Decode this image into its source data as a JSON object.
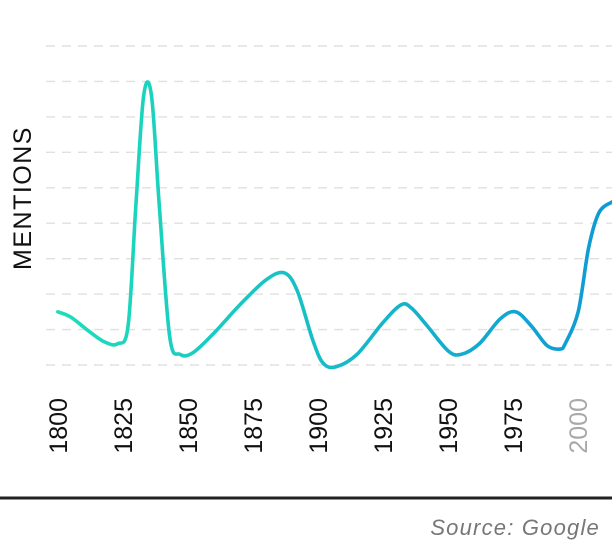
{
  "chart_data": {
    "type": "line",
    "title": "",
    "ylabel": "MENTIONS",
    "xlabel": "",
    "x_tick_labels": [
      "1800",
      "1825",
      "1850",
      "1875",
      "1900",
      "1925",
      "1950",
      "1975",
      "2000"
    ],
    "x_range": [
      1797,
      2013
    ],
    "y_range": [
      0,
      9
    ],
    "grid": "horizontal-dashed",
    "series": [
      {
        "points": [
          [
            1800,
            1.5
          ],
          [
            1805,
            1.35
          ],
          [
            1812,
            0.95
          ],
          [
            1818,
            0.65
          ],
          [
            1823,
            0.6
          ],
          [
            1827,
            1.1
          ],
          [
            1830,
            4.5
          ],
          [
            1833,
            7.6
          ],
          [
            1836,
            7.6
          ],
          [
            1839,
            4.5
          ],
          [
            1843,
            0.8
          ],
          [
            1847,
            0.3
          ],
          [
            1852,
            0.35
          ],
          [
            1860,
            0.9
          ],
          [
            1870,
            1.7
          ],
          [
            1880,
            2.4
          ],
          [
            1887,
            2.6
          ],
          [
            1892,
            2.1
          ],
          [
            1898,
            0.7
          ],
          [
            1902,
            0.05
          ],
          [
            1907,
            -0.05
          ],
          [
            1915,
            0.3
          ],
          [
            1925,
            1.2
          ],
          [
            1932,
            1.7
          ],
          [
            1936,
            1.6
          ],
          [
            1942,
            1.1
          ],
          [
            1950,
            0.4
          ],
          [
            1955,
            0.3
          ],
          [
            1962,
            0.6
          ],
          [
            1970,
            1.3
          ],
          [
            1976,
            1.5
          ],
          [
            1982,
            1.1
          ],
          [
            1988,
            0.55
          ],
          [
            1993,
            0.45
          ],
          [
            1995,
            0.6
          ],
          [
            2000,
            1.5
          ],
          [
            2004,
            3.3
          ],
          [
            2008,
            4.3
          ],
          [
            2013,
            4.6
          ]
        ]
      }
    ]
  },
  "colors": {
    "line_start": "#1ddfb9",
    "line_end": "#0f99d5",
    "grid": "#e0e0e0",
    "tick_label": "#111111",
    "tick_label_muted": "#a8a8a8",
    "axis_label": "#111111",
    "source": "#777777",
    "baseline": "#222222"
  },
  "source": "Source: Google"
}
